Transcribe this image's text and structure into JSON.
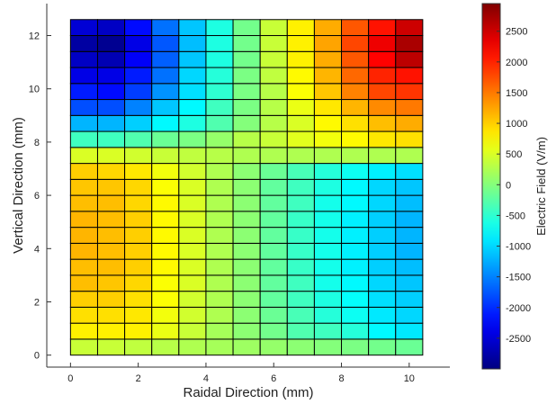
{
  "chart_data": {
    "type": "heatmap",
    "xlabel": "Raidal Direction (mm)",
    "ylabel": "Vertical Direction (mm)",
    "colorbar_label": "Electric Field (V/m)",
    "xlim": [
      -0.7,
      11.2
    ],
    "ylim": [
      -0.45,
      13.2
    ],
    "x_ticks": [
      0,
      2,
      4,
      6,
      8,
      10
    ],
    "y_ticks": [
      0,
      2,
      4,
      6,
      8,
      10,
      12
    ],
    "colorbar_ticks": [
      2500,
      2000,
      1500,
      1000,
      500,
      0,
      -500,
      -1000,
      -1500,
      -2000,
      -2500
    ],
    "colorbar_range": [
      -3000,
      2950
    ],
    "colormap": "jet",
    "x_centers": [
      0.4,
      1.2,
      2.0,
      2.8,
      3.6,
      4.4,
      5.2,
      6.0,
      6.8,
      7.6,
      8.4,
      9.2,
      10.0
    ],
    "x_edges": [
      0.0,
      0.8,
      1.6,
      2.4,
      3.2,
      4.0,
      4.8,
      5.6,
      6.4,
      7.2,
      8.0,
      8.8,
      9.6,
      10.4
    ],
    "y_centers": [
      0.3,
      0.9,
      1.5,
      2.1,
      2.7,
      3.3,
      3.9,
      4.5,
      5.1,
      5.7,
      6.3,
      6.9,
      7.5,
      8.1,
      8.7,
      9.3,
      9.9,
      10.5,
      11.1,
      11.7,
      12.3
    ],
    "y_edges": [
      0.0,
      0.6,
      1.2,
      1.8,
      2.4,
      3.0,
      3.6,
      4.2,
      4.8,
      5.4,
      6.0,
      6.6,
      7.2,
      7.8,
      8.4,
      9.0,
      9.6,
      10.2,
      10.8,
      11.4,
      12.0,
      12.6
    ],
    "z_rows_bottom_to_top": [
      [
        400,
        400,
        350,
        300,
        250,
        200,
        150,
        100,
        50,
        0,
        -50,
        -100,
        -150
      ],
      [
        800,
        800,
        800,
        600,
        400,
        200,
        50,
        -100,
        -300,
        -400,
        -550,
        -800,
        -900
      ],
      [
        900,
        900,
        850,
        650,
        450,
        250,
        50,
        -150,
        -350,
        -550,
        -700,
        -900,
        -1000
      ],
      [
        1000,
        1000,
        900,
        700,
        450,
        250,
        50,
        -200,
        -400,
        -600,
        -750,
        -950,
        -1050
      ],
      [
        1100,
        1050,
        950,
        700,
        500,
        250,
        50,
        -200,
        -400,
        -650,
        -800,
        -1000,
        -1100
      ],
      [
        1100,
        1100,
        1000,
        750,
        500,
        250,
        50,
        -200,
        -450,
        -650,
        -850,
        -1050,
        -1150
      ],
      [
        1150,
        1100,
        1000,
        750,
        500,
        250,
        50,
        -200,
        -450,
        -650,
        -850,
        -1050,
        -1200
      ],
      [
        1150,
        1100,
        1000,
        750,
        500,
        250,
        50,
        -200,
        -450,
        -650,
        -850,
        -1050,
        -1200
      ],
      [
        1150,
        1100,
        1000,
        750,
        500,
        250,
        50,
        -200,
        -450,
        -650,
        -850,
        -1050,
        -1200
      ],
      [
        1100,
        1100,
        950,
        750,
        500,
        250,
        50,
        -200,
        -400,
        -650,
        -800,
        -1000,
        -1150
      ],
      [
        1050,
        1050,
        950,
        700,
        500,
        250,
        50,
        -200,
        -400,
        -600,
        -800,
        -1000,
        -1100
      ],
      [
        1000,
        950,
        850,
        650,
        450,
        250,
        50,
        -150,
        -350,
        -550,
        -700,
        -850,
        -950
      ],
      [
        500,
        500,
        450,
        400,
        350,
        300,
        250,
        250,
        250,
        250,
        250,
        250,
        250
      ],
      [
        -400,
        -400,
        -300,
        -150,
        -50,
        100,
        300,
        400,
        550,
        650,
        750,
        850,
        900
      ],
      [
        -1200,
        -1200,
        -1050,
        -800,
        -600,
        -300,
        0,
        300,
        500,
        750,
        900,
        1100,
        1200
      ],
      [
        -1800,
        -1800,
        -1500,
        -1100,
        -800,
        -400,
        -50,
        300,
        600,
        850,
        1150,
        1400,
        1500
      ],
      [
        -2100,
        -2200,
        -1900,
        -1400,
        -950,
        -500,
        -50,
        300,
        700,
        1050,
        1450,
        1800,
        1900
      ],
      [
        -2400,
        -2400,
        -2100,
        -1600,
        -1000,
        -550,
        -50,
        350,
        750,
        1150,
        1600,
        2000,
        2100
      ],
      [
        -2600,
        -2700,
        -2300,
        -1700,
        -1100,
        -600,
        -100,
        400,
        800,
        1200,
        1700,
        2200,
        2600
      ],
      [
        -2800,
        -2900,
        -2400,
        -1750,
        -1150,
        -600,
        -100,
        400,
        800,
        1250,
        1800,
        2300,
        2700
      ],
      [
        -2500,
        -2600,
        -2200,
        -1600,
        -1100,
        -600,
        -100,
        400,
        800,
        1200,
        1700,
        2100,
        2500
      ]
    ]
  }
}
